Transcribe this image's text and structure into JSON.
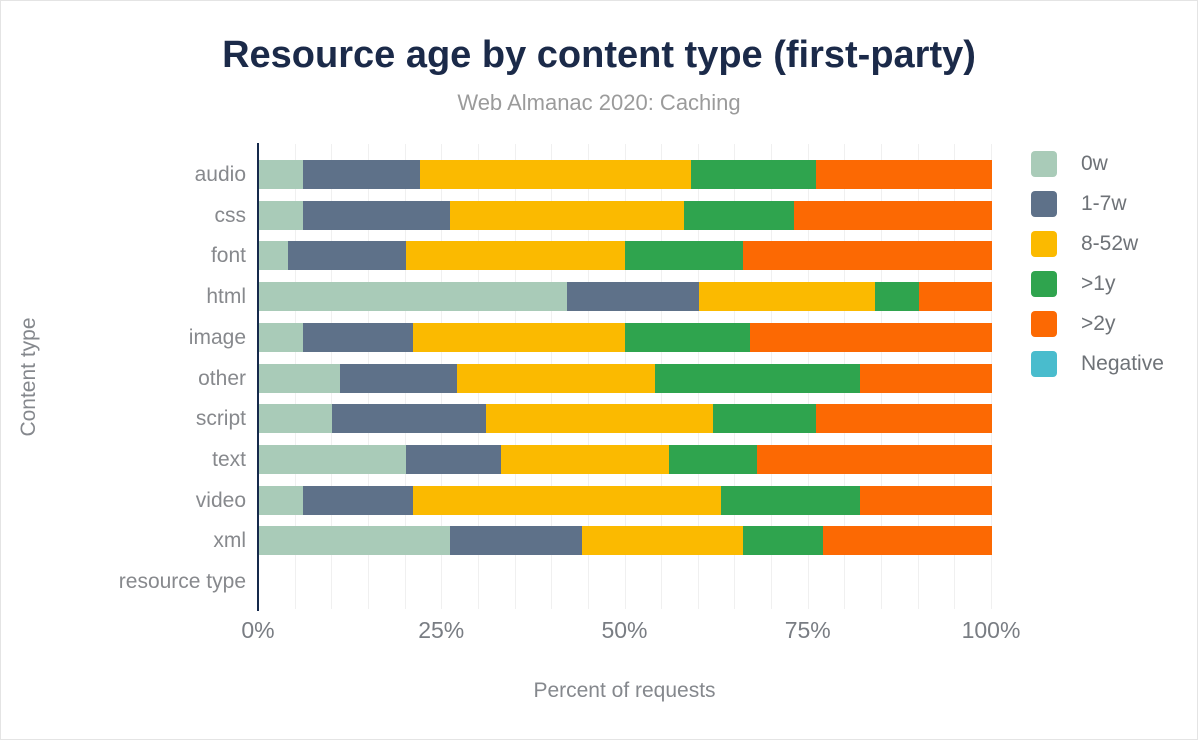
{
  "title": "Resource age by content type (first-party)",
  "subtitle": "Web Almanac 2020: Caching",
  "x_axis": {
    "label": "Percent of requests",
    "ticks": [
      "0%",
      "25%",
      "50%",
      "75%",
      "100%"
    ],
    "tick_values": [
      0,
      25,
      50,
      75,
      100
    ]
  },
  "y_axis": {
    "label": "Content type"
  },
  "colors": {
    "title_text": "#1b2a49",
    "subtitle_text": "#9b9b9b",
    "axis_text": "#85888d",
    "axis_line": "#15294b",
    "gridline": "#f0f0f0"
  },
  "chart_data": {
    "type": "bar",
    "orientation": "horizontal",
    "stacked": true,
    "title": "Resource age by content type (first-party)",
    "subtitle": "Web Almanac 2020: Caching",
    "xlabel": "Percent of requests",
    "ylabel": "Content type",
    "xlim": [
      0,
      100
    ],
    "x_tick_labels": [
      "0%",
      "25%",
      "50%",
      "75%",
      "100%"
    ],
    "grid": "vertical gridlines every 5%",
    "legend_position": "right",
    "categories": [
      "audio",
      "css",
      "font",
      "html",
      "image",
      "other",
      "script",
      "text",
      "video",
      "xml",
      "resource type"
    ],
    "series": [
      {
        "name": "0w",
        "color": "#a9cbb8",
        "values": [
          6,
          6,
          4,
          42,
          6,
          11,
          10,
          20,
          6,
          26,
          0
        ]
      },
      {
        "name": "1-7w",
        "color": "#5e7189",
        "values": [
          16,
          20,
          16,
          18,
          15,
          16,
          21,
          13,
          15,
          18,
          0
        ]
      },
      {
        "name": "8-52w",
        "color": "#fbba00",
        "values": [
          37,
          32,
          30,
          24,
          29,
          27,
          31,
          23,
          42,
          22,
          0
        ]
      },
      {
        "name": ">1y",
        "color": "#2fa44e",
        "values": [
          17,
          15,
          16,
          6,
          17,
          28,
          14,
          12,
          19,
          11,
          0
        ]
      },
      {
        "name": ">2y",
        "color": "#fc6903",
        "values": [
          24,
          27,
          34,
          10,
          33,
          18,
          24,
          32,
          18,
          23,
          0
        ]
      },
      {
        "name": "Negative",
        "color": "#49bccd",
        "values": [
          0,
          0,
          0,
          0,
          0,
          0,
          0,
          0,
          0,
          0,
          0
        ]
      }
    ]
  }
}
